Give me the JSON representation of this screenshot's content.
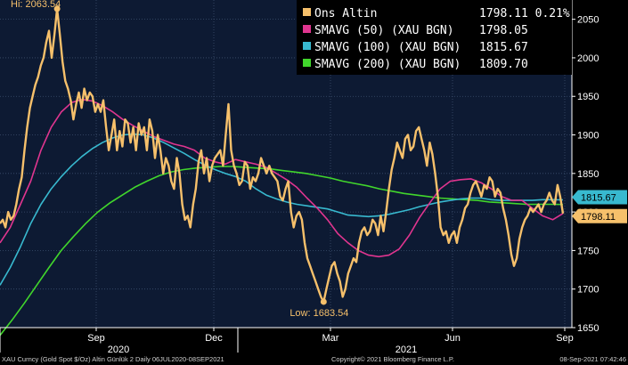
{
  "chart_data": {
    "type": "line",
    "title": "",
    "xlabel": "",
    "ylabel": "",
    "ylim": [
      1650,
      2075
    ],
    "yticks": [
      1650,
      1700,
      1750,
      1800,
      1850,
      1900,
      1950,
      2000,
      2050
    ],
    "x_month_labels": [
      "Sep",
      "Dec",
      "Mar",
      "Jun",
      "Sep"
    ],
    "x_year_labels": [
      "2020",
      "2021"
    ],
    "grid": true,
    "legend_position": "top-right",
    "series": [
      {
        "name": "Ons Altin",
        "color": "#f6c06b",
        "legend_value": "1798.11 0.21%",
        "values": [
          1785,
          1790,
          1780,
          1800,
          1790,
          1795,
          1810,
          1830,
          1845,
          1880,
          1910,
          1935,
          1950,
          1965,
          1975,
          1990,
          2000,
          2020,
          2035,
          2000,
          2030,
          2063.54,
          2030,
          1995,
          1970,
          1960,
          1945,
          1920,
          1940,
          1955,
          1935,
          1960,
          1945,
          1955,
          1950,
          1930,
          1940,
          1930,
          1945,
          1910,
          1880,
          1900,
          1920,
          1880,
          1905,
          1885,
          1920,
          1915,
          1890,
          1910,
          1880,
          1915,
          1900,
          1910,
          1880,
          1920,
          1905,
          1870,
          1900,
          1880,
          1850,
          1870,
          1860,
          1840,
          1830,
          1870,
          1850,
          1810,
          1790,
          1795,
          1780,
          1810,
          1830,
          1865,
          1880,
          1850,
          1870,
          1840,
          1860,
          1870,
          1875,
          1880,
          1860,
          1900,
          1940,
          1880,
          1860,
          1850,
          1835,
          1840,
          1865,
          1860,
          1830,
          1845,
          1840,
          1850,
          1870,
          1860,
          1850,
          1860,
          1850,
          1845,
          1840,
          1820,
          1815,
          1830,
          1840,
          1800,
          1780,
          1795,
          1800,
          1790,
          1760,
          1740,
          1730,
          1720,
          1710,
          1700,
          1690,
          1683.54,
          1700,
          1715,
          1730,
          1735,
          1720,
          1710,
          1690,
          1700,
          1720,
          1730,
          1740,
          1735,
          1760,
          1775,
          1780,
          1770,
          1775,
          1790,
          1785,
          1770,
          1795,
          1775,
          1800,
          1830,
          1855,
          1870,
          1890,
          1880,
          1870,
          1895,
          1900,
          1880,
          1885,
          1905,
          1910,
          1895,
          1880,
          1860,
          1890,
          1875,
          1850,
          1820,
          1780,
          1770,
          1775,
          1760,
          1770,
          1775,
          1760,
          1780,
          1790,
          1805,
          1810,
          1825,
          1835,
          1840,
          1830,
          1820,
          1835,
          1830,
          1845,
          1840,
          1820,
          1830,
          1825,
          1805,
          1790,
          1770,
          1745,
          1730,
          1740,
          1765,
          1780,
          1790,
          1795,
          1805,
          1800,
          1805,
          1810,
          1800,
          1810,
          1815,
          1825,
          1815,
          1810,
          1835,
          1820,
          1798.11
        ],
        "last_label": "1798.11"
      },
      {
        "name": "SMAVG (50) (XAU BGN)",
        "color": "#e0358f",
        "legend_value": "1798.05",
        "values": [
          1760,
          1780,
          1810,
          1840,
          1880,
          1910,
          1930,
          1942,
          1946,
          1944,
          1938,
          1930,
          1920,
          1912,
          1905,
          1898,
          1893,
          1888,
          1885,
          1880,
          1870,
          1865,
          1862,
          1868,
          1865,
          1862,
          1858,
          1850,
          1842,
          1832,
          1818,
          1805,
          1790,
          1772,
          1760,
          1750,
          1744,
          1742,
          1744,
          1752,
          1770,
          1793,
          1812,
          1830,
          1840,
          1842,
          1843,
          1838,
          1830,
          1820,
          1815,
          1815,
          1805,
          1795,
          1790,
          1798
        ]
      },
      {
        "name": "SMAVG (100) (XAU BGN)",
        "color": "#38b9cf",
        "legend_value": "1815.67",
        "values": [
          1705,
          1728,
          1755,
          1785,
          1810,
          1830,
          1846,
          1860,
          1872,
          1882,
          1890,
          1896,
          1900,
          1901,
          1900,
          1896,
          1890,
          1883,
          1876,
          1868,
          1861,
          1855,
          1850,
          1846,
          1840,
          1830,
          1822,
          1817,
          1813,
          1810,
          1808,
          1806,
          1804,
          1800,
          1796,
          1795,
          1794,
          1795,
          1797,
          1800,
          1803,
          1807,
          1810,
          1813,
          1815,
          1817,
          1818,
          1818,
          1816,
          1815,
          1815,
          1815,
          1815,
          1816,
          1816,
          1815.67
        ]
      },
      {
        "name": "SMAVG (200) (XAU BGN)",
        "color": "#41d62c",
        "legend_value": "1809.70",
        "values": [
          1640,
          1660,
          1682,
          1705,
          1728,
          1750,
          1768,
          1785,
          1800,
          1812,
          1822,
          1832,
          1840,
          1847,
          1852,
          1855,
          1857,
          1858,
          1859,
          1859,
          1858,
          1857,
          1856,
          1854,
          1852,
          1850,
          1847,
          1844,
          1840,
          1837,
          1834,
          1830,
          1827,
          1824,
          1822,
          1820,
          1818,
          1817,
          1816,
          1815,
          1813,
          1812,
          1811,
          1810,
          1810,
          1810,
          1809.7
        ]
      }
    ],
    "annotations": [
      {
        "text": "Hi: 2063.54",
        "value": 2063.54
      },
      {
        "text": "Low: 1683.54",
        "value": 1683.54
      }
    ],
    "price_tags": [
      {
        "text": "1815.67",
        "value": 1815.67,
        "color": "#38b9cf"
      },
      {
        "text": "1798.11",
        "value": 1798.11,
        "color": "#f6c06b"
      }
    ]
  },
  "footer": {
    "left": "XAU Curncy (Gold Spot   $/Oz) Altin Günlük 2  Daily 06JUL2020-08SEP2021",
    "center": "Copyright© 2021 Bloomberg Finance L.P.",
    "right": "08-Sep-2021 07:42:46"
  },
  "colors": {
    "background": "#0d1a33",
    "grid": "#3d4f6e",
    "axis_text": "#ffffff",
    "legend_bg": "#000000"
  }
}
